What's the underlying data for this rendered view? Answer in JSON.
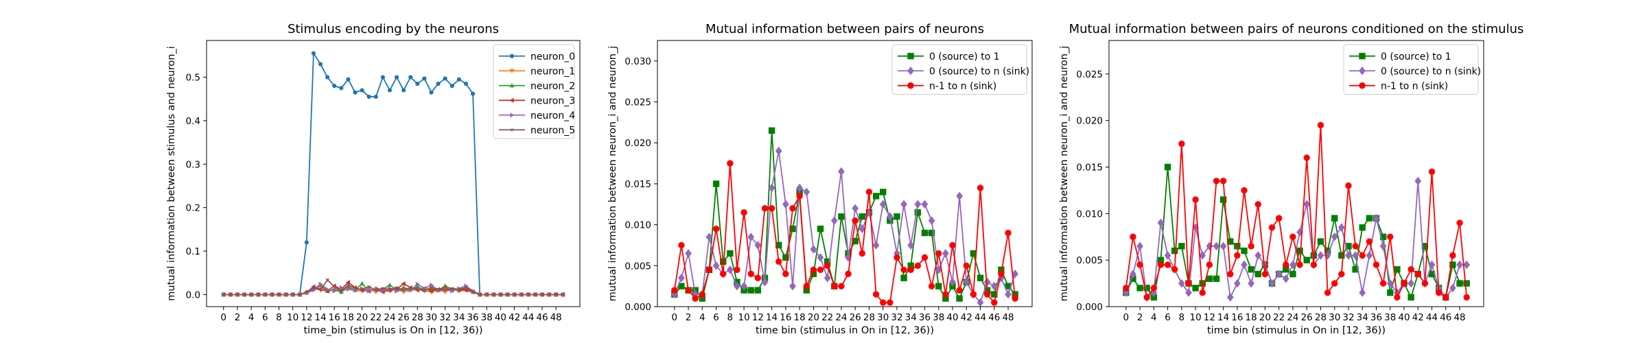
{
  "figure": {
    "background": "#ffffff"
  },
  "chart_data": [
    {
      "type": "line",
      "title": "Stimulus encoding by the neurons",
      "xlabel": "time_bin (stimulus is On in [12, 36))",
      "ylabel": "mutual information between stimulus and neuron_i",
      "xlim": [
        -2.45,
        51.45
      ],
      "ylim": [
        -0.0278,
        0.5845
      ],
      "xticks": [
        0,
        2,
        4,
        6,
        8,
        10,
        12,
        14,
        16,
        18,
        20,
        22,
        24,
        26,
        28,
        30,
        32,
        34,
        36,
        38,
        40,
        42,
        44,
        46,
        48
      ],
      "yticks": [
        0.0,
        0.1,
        0.2,
        0.3,
        0.4,
        0.5
      ],
      "ytick_labels": [
        "0.0",
        "0.1",
        "0.2",
        "0.3",
        "0.4",
        "0.5"
      ],
      "legend_position": "upper right",
      "grid": false,
      "x": [
        0,
        1,
        2,
        3,
        4,
        5,
        6,
        7,
        8,
        9,
        10,
        11,
        12,
        13,
        14,
        15,
        16,
        17,
        18,
        19,
        20,
        21,
        22,
        23,
        24,
        25,
        26,
        27,
        28,
        29,
        30,
        31,
        32,
        33,
        34,
        35,
        36,
        37,
        38,
        39,
        40,
        41,
        42,
        43,
        44,
        45,
        46,
        47,
        48,
        49
      ],
      "series": [
        {
          "name": "neuron_0",
          "color": "#1f77b4",
          "marker": "circle",
          "values": [
            0,
            0,
            0,
            0,
            0,
            0,
            0,
            0,
            0,
            0,
            0,
            0,
            0.12,
            0.555,
            0.53,
            0.5,
            0.48,
            0.475,
            0.495,
            0.465,
            0.47,
            0.455,
            0.455,
            0.5,
            0.47,
            0.5,
            0.47,
            0.5,
            0.485,
            0.497,
            0.465,
            0.485,
            0.497,
            0.48,
            0.495,
            0.485,
            0.462,
            0,
            0,
            0,
            0,
            0,
            0,
            0,
            0,
            0,
            0,
            0,
            0,
            0
          ]
        },
        {
          "name": "neuron_1",
          "color": "#ff7f0e",
          "marker": "triangle-down",
          "values": [
            0,
            0,
            0,
            0,
            0,
            0,
            0,
            0,
            0,
            0,
            0,
            0,
            0.004,
            0.012,
            0.018,
            0.008,
            0.01,
            0.006,
            0.015,
            0.01,
            0.008,
            0.012,
            0.006,
            0.01,
            0.008,
            0.012,
            0.006,
            0.01,
            0.012,
            0.008,
            0.006,
            0.01,
            0.006,
            0.012,
            0.008,
            0.01,
            0.006,
            0,
            0,
            0,
            0,
            0,
            0,
            0,
            0,
            0,
            0,
            0,
            0,
            0
          ]
        },
        {
          "name": "neuron_2",
          "color": "#2ca02c",
          "marker": "triangle-up",
          "values": [
            0,
            0,
            0,
            0,
            0,
            0,
            0,
            0,
            0,
            0,
            0,
            0,
            0.006,
            0.014,
            0.022,
            0.008,
            0.012,
            0.006,
            0.018,
            0.01,
            0.025,
            0.008,
            0.014,
            0.012,
            0.022,
            0.01,
            0.016,
            0.012,
            0.018,
            0.01,
            0.014,
            0.01,
            0.02,
            0.012,
            0.01,
            0.014,
            0.006,
            0,
            0,
            0,
            0,
            0,
            0,
            0,
            0,
            0,
            0,
            0,
            0,
            0
          ]
        },
        {
          "name": "neuron_3",
          "color": "#d62728",
          "marker": "triangle-left",
          "values": [
            0,
            0,
            0,
            0,
            0,
            0,
            0,
            0,
            0,
            0,
            0,
            0,
            0.005,
            0.018,
            0.012,
            0.008,
            0.02,
            0.012,
            0.028,
            0.016,
            0.01,
            0.008,
            0.012,
            0.006,
            0.01,
            0.012,
            0.025,
            0.016,
            0.01,
            0.014,
            0.008,
            0.012,
            0.015,
            0.01,
            0.012,
            0.01,
            0.006,
            0,
            0,
            0,
            0,
            0,
            0,
            0,
            0,
            0,
            0,
            0,
            0,
            0
          ]
        },
        {
          "name": "neuron_4",
          "color": "#9467bd",
          "marker": "triangle-right",
          "values": [
            0,
            0,
            0,
            0,
            0,
            0,
            0,
            0,
            0,
            0,
            0,
            0,
            0.004,
            0.01,
            0.024,
            0.012,
            0.008,
            0.016,
            0.012,
            0.01,
            0.014,
            0.008,
            0.012,
            0.01,
            0.014,
            0.008,
            0.012,
            0.01,
            0.024,
            0.014,
            0.022,
            0.01,
            0.012,
            0.008,
            0.014,
            0.02,
            0.008,
            0,
            0,
            0,
            0,
            0,
            0,
            0,
            0,
            0,
            0,
            0,
            0,
            0
          ]
        },
        {
          "name": "neuron_5",
          "color": "#8c564b",
          "marker": "tri-down",
          "values": [
            0,
            0,
            0,
            0,
            0,
            0,
            0,
            0,
            0,
            0,
            0,
            0,
            0.005,
            0.015,
            0.01,
            0.034,
            0.018,
            0.008,
            0.022,
            0.014,
            0.012,
            0.018,
            0.01,
            0.014,
            0.012,
            0.016,
            0.01,
            0.014,
            0.012,
            0.01,
            0.016,
            0.012,
            0.01,
            0.014,
            0.012,
            0.016,
            0.008,
            0,
            0,
            0,
            0,
            0,
            0,
            0,
            0,
            0,
            0,
            0,
            0,
            0
          ]
        }
      ]
    },
    {
      "type": "line",
      "title": "Mutual information between pairs of neurons",
      "xlabel": "time bin (stimulus in On in [12, 36))",
      "ylabel": "mutual information between neuron_i and neuron_j",
      "xlim": [
        -2.45,
        51.45
      ],
      "ylim": [
        0,
        0.0325
      ],
      "xticks": [
        0,
        2,
        4,
        6,
        8,
        10,
        12,
        14,
        16,
        18,
        20,
        22,
        24,
        26,
        28,
        30,
        32,
        34,
        36,
        38,
        40,
        42,
        44,
        46,
        48
      ],
      "yticks": [
        0,
        0.005,
        0.01,
        0.015,
        0.02,
        0.025,
        0.03
      ],
      "ytick_labels": [
        "0.000",
        "0.005",
        "0.010",
        "0.015",
        "0.020",
        "0.025",
        "0.030"
      ],
      "legend_position": "upper right",
      "grid": false,
      "x": [
        0,
        1,
        2,
        3,
        4,
        5,
        6,
        7,
        8,
        9,
        10,
        11,
        12,
        13,
        14,
        15,
        16,
        17,
        18,
        19,
        20,
        21,
        22,
        23,
        24,
        25,
        26,
        27,
        28,
        29,
        30,
        31,
        32,
        33,
        34,
        35,
        36,
        37,
        38,
        39,
        40,
        41,
        42,
        43,
        44,
        45,
        46,
        47,
        48,
        49
      ],
      "series": [
        {
          "name": "0 (source) to 1",
          "color": "#008000",
          "marker": "square",
          "values": [
            0.0015,
            0.0025,
            0.002,
            0.002,
            0.001,
            0.0045,
            0.015,
            0.0055,
            0.0065,
            0.003,
            0.002,
            0.002,
            0.002,
            0.0035,
            0.0215,
            0.0075,
            0.006,
            0.0095,
            0.014,
            0.002,
            0.004,
            0.0095,
            0.0055,
            0.0025,
            0.011,
            0.0065,
            0.008,
            0.011,
            0.0115,
            0.0135,
            0.014,
            0.0105,
            0.011,
            0.0035,
            0.005,
            0.0115,
            0.009,
            0.009,
            0.0025,
            0.001,
            0.0025,
            0.001,
            0.003,
            0.0065,
            0.0035,
            0.002,
            0.0015,
            0.0045,
            0.0025,
            0.0015
          ]
        },
        {
          "name": "0 (source) to n (sink)",
          "color": "#9467bd",
          "marker": "diamond",
          "values": [
            0.0015,
            0.0035,
            0.0065,
            0.0015,
            0.0015,
            0.0085,
            0.005,
            0.004,
            0.0045,
            0.0025,
            0.0025,
            0.0085,
            0.0075,
            0.003,
            0.0145,
            0.019,
            0.0125,
            0.0025,
            0.0145,
            0.014,
            0.007,
            0.006,
            0.0035,
            0.0105,
            0.0165,
            0.006,
            0.012,
            0.0095,
            0.0115,
            0.0075,
            0.0125,
            0.011,
            0.0065,
            0.0125,
            0.0075,
            0.0125,
            0.0125,
            0.0105,
            0.0045,
            0.0065,
            0.003,
            0.0135,
            0.003,
            0.0015,
            0.0005,
            0.003,
            0.0025,
            0.0035,
            0.0015,
            0.004
          ]
        },
        {
          "name": "n-1 to n (sink)",
          "color": "#ff0000",
          "marker": "circle",
          "values": [
            0.002,
            0.0075,
            0.002,
            0.001,
            0.0015,
            0.0045,
            0.0095,
            0.004,
            0.0175,
            0.0045,
            0.0115,
            0.004,
            0.0035,
            0.012,
            0.012,
            0.0055,
            0.004,
            0.012,
            0.0135,
            0.0025,
            0.0045,
            0.0045,
            0.005,
            0.0025,
            0.0025,
            0.004,
            0.0105,
            0.0065,
            0.014,
            0.0015,
            0.0005,
            0.0005,
            0.006,
            0.0045,
            0.0045,
            0.005,
            0.006,
            0.0025,
            0.0065,
            0.0015,
            0.0075,
            0.002,
            0.005,
            0.0015,
            0.0145,
            0.0015,
            0.0005,
            0.004,
            0.009,
            0.001
          ]
        }
      ]
    },
    {
      "type": "line",
      "title": "Mutual information between pairs of neurons conditioned on the stimulus",
      "xlabel": "time bin (stimulus in On in [12, 36))",
      "ylabel": "mutual information between neuron_i and neuron_j",
      "xlim": [
        -2.45,
        51.45
      ],
      "ylim": [
        0,
        0.0286
      ],
      "xticks": [
        0,
        2,
        4,
        6,
        8,
        10,
        12,
        14,
        16,
        18,
        20,
        22,
        24,
        26,
        28,
        30,
        32,
        34,
        36,
        38,
        40,
        42,
        44,
        46,
        48
      ],
      "yticks": [
        0,
        0.005,
        0.01,
        0.015,
        0.02,
        0.025
      ],
      "ytick_labels": [
        "0.000",
        "0.005",
        "0.010",
        "0.015",
        "0.020",
        "0.025"
      ],
      "legend_position": "upper right",
      "grid": false,
      "x": [
        0,
        1,
        2,
        3,
        4,
        5,
        6,
        7,
        8,
        9,
        10,
        11,
        12,
        13,
        14,
        15,
        16,
        17,
        18,
        19,
        20,
        21,
        22,
        23,
        24,
        25,
        26,
        27,
        28,
        29,
        30,
        31,
        32,
        33,
        34,
        35,
        36,
        37,
        38,
        39,
        40,
        41,
        42,
        43,
        44,
        45,
        46,
        47,
        48,
        49
      ],
      "series": [
        {
          "name": "0 (source) to 1",
          "color": "#008000",
          "marker": "square",
          "values": [
            0.0015,
            0.003,
            0.002,
            0.002,
            0.001,
            0.005,
            0.015,
            0.006,
            0.0065,
            0.0025,
            0.002,
            0.0025,
            0.003,
            0.003,
            0.0115,
            0.007,
            0.0065,
            0.006,
            0.004,
            0.0035,
            0.0045,
            0.0025,
            0.0035,
            0.004,
            0.0035,
            0.006,
            0.005,
            0.0055,
            0.007,
            0.006,
            0.0095,
            0.0055,
            0.0065,
            0.004,
            0.0085,
            0.0095,
            0.0095,
            0.0075,
            0.0015,
            0.004,
            0.0025,
            0.001,
            0.0035,
            0.0065,
            0.0035,
            0.002,
            0.001,
            0.0045,
            0.0025,
            0.0025
          ]
        },
        {
          "name": "0 (source) to n (sink)",
          "color": "#9467bd",
          "marker": "diamond",
          "values": [
            0.0015,
            0.0035,
            0.0065,
            0.001,
            0.0015,
            0.009,
            0.0055,
            0.004,
            0.0025,
            0.0015,
            0.0085,
            0.0055,
            0.0065,
            0.0065,
            0.0065,
            0.001,
            0.0025,
            0.0045,
            0.0025,
            0.0055,
            0.0045,
            0.0025,
            0.0035,
            0.003,
            0.0045,
            0.008,
            0.011,
            0.0045,
            0.0055,
            0.0055,
            0.0075,
            0.0085,
            0.0055,
            0.0055,
            0.0015,
            0.0055,
            0.0095,
            0.0065,
            0.0025,
            0.0015,
            0.0025,
            0.0025,
            0.0135,
            0.0025,
            0.0045,
            0.002,
            0.001,
            0.002,
            0.0045,
            0.0045
          ]
        },
        {
          "name": "n-1 to n (sink)",
          "color": "#ff0000",
          "marker": "circle",
          "values": [
            0.002,
            0.0075,
            0.0045,
            0.001,
            0.002,
            0.0045,
            0.0045,
            0.004,
            0.0175,
            0.0025,
            0.0115,
            0.0015,
            0.0045,
            0.0135,
            0.0135,
            0.0035,
            0.0055,
            0.0125,
            0.0065,
            0.011,
            0.0035,
            0.0085,
            0.0095,
            0.0045,
            0.0075,
            0.0045,
            0.016,
            0.0045,
            0.0195,
            0.0015,
            0.0025,
            0.0035,
            0.013,
            0.0065,
            0.0055,
            0.007,
            0.0045,
            0.0025,
            0.0075,
            0.001,
            0.0025,
            0.004,
            0.0035,
            0.0025,
            0.0145,
            0.0015,
            0.001,
            0.0055,
            0.009,
            0.001
          ]
        }
      ]
    }
  ]
}
